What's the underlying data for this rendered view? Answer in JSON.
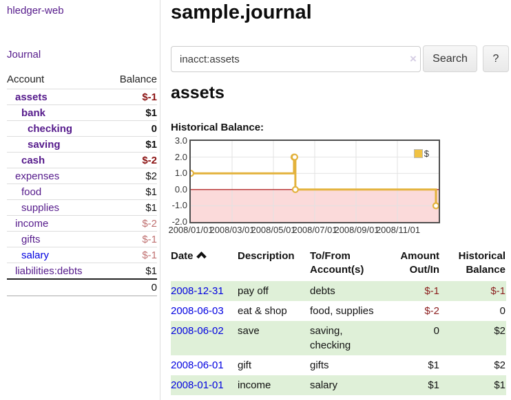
{
  "app": {
    "title": "hledger-web",
    "nav_journal": "Journal"
  },
  "sidebar": {
    "header": {
      "account": "Account",
      "balance": "Balance"
    },
    "accounts": [
      {
        "name": "assets",
        "balance": "$-1"
      },
      {
        "name": "bank",
        "balance": "$1"
      },
      {
        "name": "checking",
        "balance": "0"
      },
      {
        "name": "saving",
        "balance": "$1"
      },
      {
        "name": "cash",
        "balance": "$-2"
      },
      {
        "name": "expenses",
        "balance": "$2"
      },
      {
        "name": "food",
        "balance": "$1"
      },
      {
        "name": "supplies",
        "balance": "$1"
      },
      {
        "name": "income",
        "balance": "$-2"
      },
      {
        "name": "gifts",
        "balance": "$-1"
      },
      {
        "name": "salary",
        "balance": "$-1"
      },
      {
        "name": "liabilities:debts",
        "balance": "$1"
      }
    ],
    "total": "0"
  },
  "header": {
    "title": "sample.journal"
  },
  "search": {
    "value": "inacct:assets",
    "clear_icon": "×",
    "button_label": "Search",
    "help_label": "?"
  },
  "account_page": {
    "heading": "assets",
    "chart_heading": "Historical Balance:"
  },
  "chart_data": {
    "type": "line",
    "title": "Historical Balance:",
    "step": true,
    "series": [
      {
        "name": "$",
        "points": [
          [
            "2008-01-01",
            1
          ],
          [
            "2008-06-01",
            2
          ],
          [
            "2008-06-02",
            2
          ],
          [
            "2008-06-03",
            0
          ],
          [
            "2008-12-31",
            -1
          ]
        ]
      }
    ],
    "x_range": [
      "2008-01-01",
      "2008-12-31"
    ],
    "ylim": [
      -2,
      3
    ],
    "y_ticks": [
      "3.0",
      "2.0",
      "1.0",
      "0.0",
      "-1.0",
      "-2.0"
    ],
    "x_ticks": [
      "2008/01/01",
      "2008/03/01",
      "2008/05/01",
      "2008/07/01",
      "2008/09/01",
      "2008/11/01"
    ],
    "legend": {
      "label": "$",
      "position": "top-right"
    },
    "colors": {
      "line": "#e3b23c",
      "negative_area": "#fbdada",
      "zero_line": "#a40000",
      "grid": "#e2e2e2"
    }
  },
  "register": {
    "headers": {
      "date": "Date",
      "description": "Description",
      "to_from": "To/From Account(s)",
      "amount": "Amount Out/In",
      "historical": "Historical Balance"
    },
    "rows": [
      {
        "date": "2008-12-31",
        "description": "pay off",
        "to_from": "debts",
        "amount": "$-1",
        "historical": "$-1"
      },
      {
        "date": "2008-06-03",
        "description": "eat & shop",
        "to_from": "food, supplies",
        "amount": "$-2",
        "historical": "0"
      },
      {
        "date": "2008-06-02",
        "description": "save",
        "to_from": "saving, checking",
        "amount": "0",
        "historical": "$2"
      },
      {
        "date": "2008-06-01",
        "description": "gift",
        "to_from": "gifts",
        "amount": "$1",
        "historical": "$2"
      },
      {
        "date": "2008-01-01",
        "description": "income",
        "to_from": "salary",
        "amount": "$1",
        "historical": "$1"
      }
    ]
  }
}
